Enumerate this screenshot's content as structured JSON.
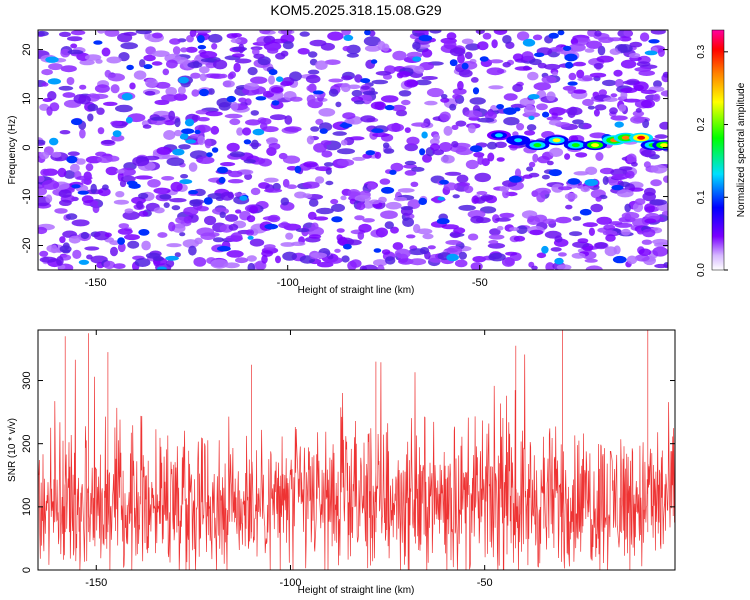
{
  "title": "KOM5.2025.318.15.08.G29",
  "chart_data": [
    {
      "type": "heatmap",
      "xlabel": "Height of straight line (km)",
      "ylabel": "Frequency (Hz)",
      "xlim": [
        -165,
        -1
      ],
      "ylim": [
        -25,
        24
      ],
      "xticks": [
        -150,
        -100,
        -50
      ],
      "yticks": [
        -20,
        -10,
        0,
        10,
        20
      ],
      "colorbar": {
        "label": "Normalized spectral amplitude",
        "range": [
          0.0,
          0.33
        ],
        "ticks": [
          0.0,
          0.1,
          0.2,
          0.3
        ],
        "tick_labels": [
          "0.0",
          "0.1",
          "0.2",
          "0.3"
        ],
        "colormap": [
          "#ffffff",
          "#7a00ff",
          "#0000ff",
          "#00e0ff",
          "#00ff00",
          "#ffff00",
          "#ff8000",
          "#ff0000",
          "#ff00a0"
        ]
      },
      "background_level": 0.04,
      "signal_track": [
        {
          "x": -45,
          "y": 2.5,
          "amplitude": 0.12
        },
        {
          "x": -40,
          "y": 1.5,
          "amplitude": 0.14
        },
        {
          "x": -35,
          "y": 0.5,
          "amplitude": 0.15
        },
        {
          "x": -30,
          "y": 1.5,
          "amplitude": 0.2
        },
        {
          "x": -25,
          "y": 0.5,
          "amplitude": 0.17
        },
        {
          "x": -20,
          "y": 0.5,
          "amplitude": 0.22
        },
        {
          "x": -15,
          "y": 1.5,
          "amplitude": 0.24
        },
        {
          "x": -12,
          "y": 2,
          "amplitude": 0.26
        },
        {
          "x": -8,
          "y": 2,
          "amplitude": 0.3
        },
        {
          "x": -5,
          "y": 0.5,
          "amplitude": 0.18
        },
        {
          "x": -2,
          "y": 0.5,
          "amplitude": 0.22
        }
      ]
    },
    {
      "type": "line",
      "xlabel": "Height of straight line (km)",
      "ylabel": "SNR (10 * v/v)",
      "xlim": [
        -165,
        -1
      ],
      "ylim": [
        0,
        380
      ],
      "xticks": [
        -150,
        -100,
        -50
      ],
      "yticks": [
        0,
        100,
        200,
        300
      ],
      "series_color": "#ee3333",
      "mean_level": 110,
      "typical_range": [
        20,
        250
      ],
      "peaks": [
        {
          "x": -158,
          "y": 370
        },
        {
          "x": -152,
          "y": 375
        },
        {
          "x": -147,
          "y": 345
        },
        {
          "x": -110,
          "y": 325
        },
        {
          "x": -78,
          "y": 330
        },
        {
          "x": -42,
          "y": 355
        },
        {
          "x": -30,
          "y": 380
        },
        {
          "x": -8,
          "y": 380
        },
        {
          "x": -1,
          "y": 310
        }
      ]
    }
  ]
}
